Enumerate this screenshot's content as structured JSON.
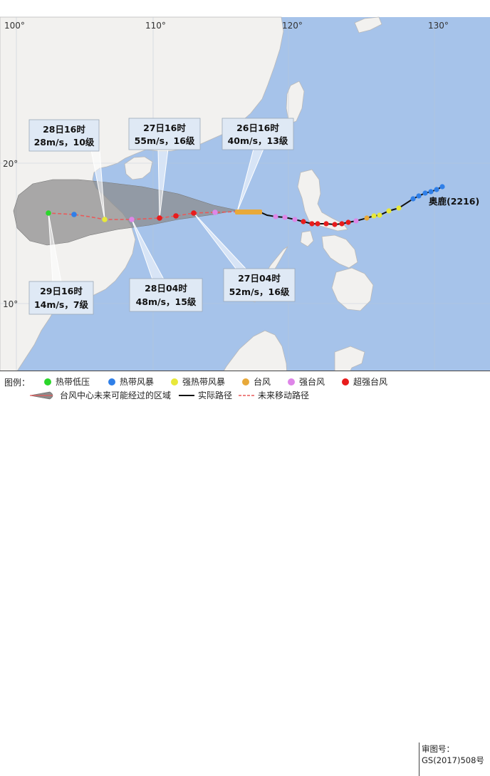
{
  "map": {
    "lon_ticks": [
      "100°",
      "110°",
      "120°",
      "130°"
    ],
    "lat_ticks": [
      "20°",
      "10°"
    ],
    "typhoon_name": "奥鹿(2216)"
  },
  "boxes": [
    {
      "id": "box-28-16",
      "line1": "28日16时",
      "line2": "28m/s，10级"
    },
    {
      "id": "box-27-16",
      "line1": "27日16时",
      "line2": "55m/s，16级"
    },
    {
      "id": "box-26-16",
      "line1": "26日16时",
      "line2": "40m/s，13级"
    },
    {
      "id": "box-29-16",
      "line1": "29日16时",
      "line2": "14m/s，7级"
    },
    {
      "id": "box-28-04",
      "line1": "28日04时",
      "line2": "48m/s，15级"
    },
    {
      "id": "box-27-04",
      "line1": "27日04时",
      "line2": "52m/s，16级"
    }
  ],
  "legend": {
    "title": "图例：",
    "intensity": [
      {
        "label": "热带低压",
        "color": "#2bd62b"
      },
      {
        "label": "热带风暴",
        "color": "#2f7fe8"
      },
      {
        "label": "强热带风暴",
        "color": "#e8e83a"
      },
      {
        "label": "台风",
        "color": "#e8a93a"
      },
      {
        "label": "强台风",
        "color": "#de86e8"
      },
      {
        "label": "超强台风",
        "color": "#e81c1c"
      }
    ],
    "cone_label": "台风中心未来可能经过的区域",
    "actual_label": "实际路径",
    "forecast_label": "未来移动路径"
  },
  "approval": {
    "line1": "审图号：",
    "line2": "GS(2017)508号"
  },
  "colors": {
    "sea": "#a6c3ea",
    "land": "#f2f1ef",
    "cone": "#8a8a8a",
    "forecast_line": "#e85a5a",
    "actual_line": "#111111"
  }
}
